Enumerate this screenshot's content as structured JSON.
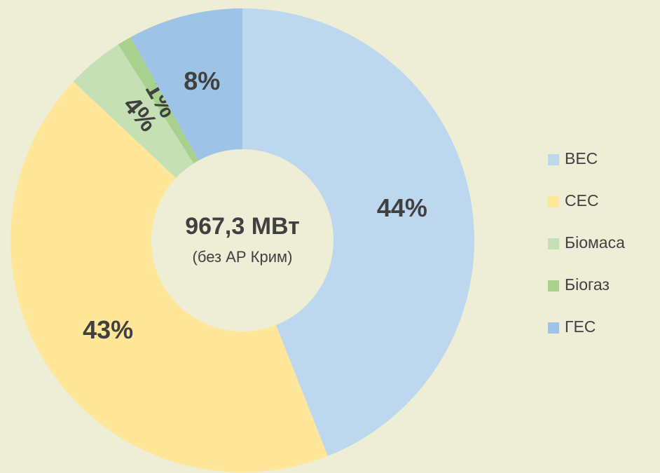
{
  "chart_data": {
    "type": "donut",
    "center_title": "967,3 МВт",
    "center_subtitle": "(без АР Крим)",
    "categories": [
      "ВЕС",
      "СЕС",
      "Біомаса",
      "Біогаз",
      "ГЕС"
    ],
    "values": [
      44,
      43,
      4,
      1,
      8
    ],
    "value_labels": [
      "44%",
      "43%",
      "4%",
      "1%",
      "8%"
    ],
    "colors": [
      "#bdd7ee",
      "#ffe699",
      "#c5e0b4",
      "#a9d18e",
      "#9dc3e6"
    ],
    "legend": "right"
  }
}
